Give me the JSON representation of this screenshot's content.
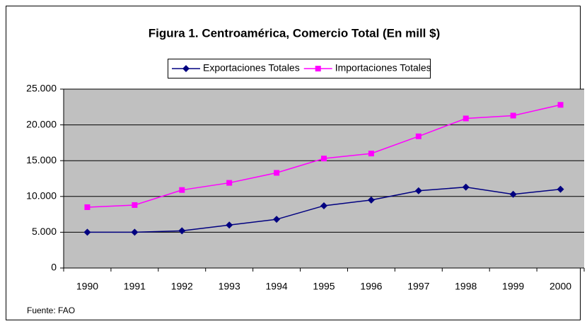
{
  "chart_data": {
    "type": "line",
    "title": "Figura 1.  Centroamérica, Comercio Total (En mill $)",
    "source": "Fuente: FAO",
    "categories": [
      "1990",
      "1991",
      "1992",
      "1993",
      "1994",
      "1995",
      "1996",
      "1997",
      "1998",
      "1999",
      "2000"
    ],
    "series": [
      {
        "name": "Exportaciones Totales",
        "color": "#000080",
        "marker": "diamond",
        "values": [
          5000,
          5000,
          5200,
          6000,
          6800,
          8700,
          9500,
          10800,
          11300,
          10300,
          11000
        ]
      },
      {
        "name": "Importaciones Totales",
        "color": "#ff00ff",
        "marker": "square",
        "values": [
          8500,
          8800,
          10900,
          11900,
          13300,
          15300,
          16000,
          18400,
          20900,
          21300,
          22800
        ]
      }
    ],
    "ylim": [
      0,
      25000
    ],
    "yticks": [
      0,
      {
        "value": 5000,
        "label": "5.000"
      },
      {
        "value": 10000,
        "label": "10.000"
      },
      {
        "value": 15000,
        "label": "15.000"
      },
      {
        "value": 20000,
        "label": "20.000"
      },
      {
        "value": 25000,
        "label": "25.000"
      }
    ],
    "grid": true,
    "plot_background": "#c0c0c0",
    "legend": "top"
  }
}
